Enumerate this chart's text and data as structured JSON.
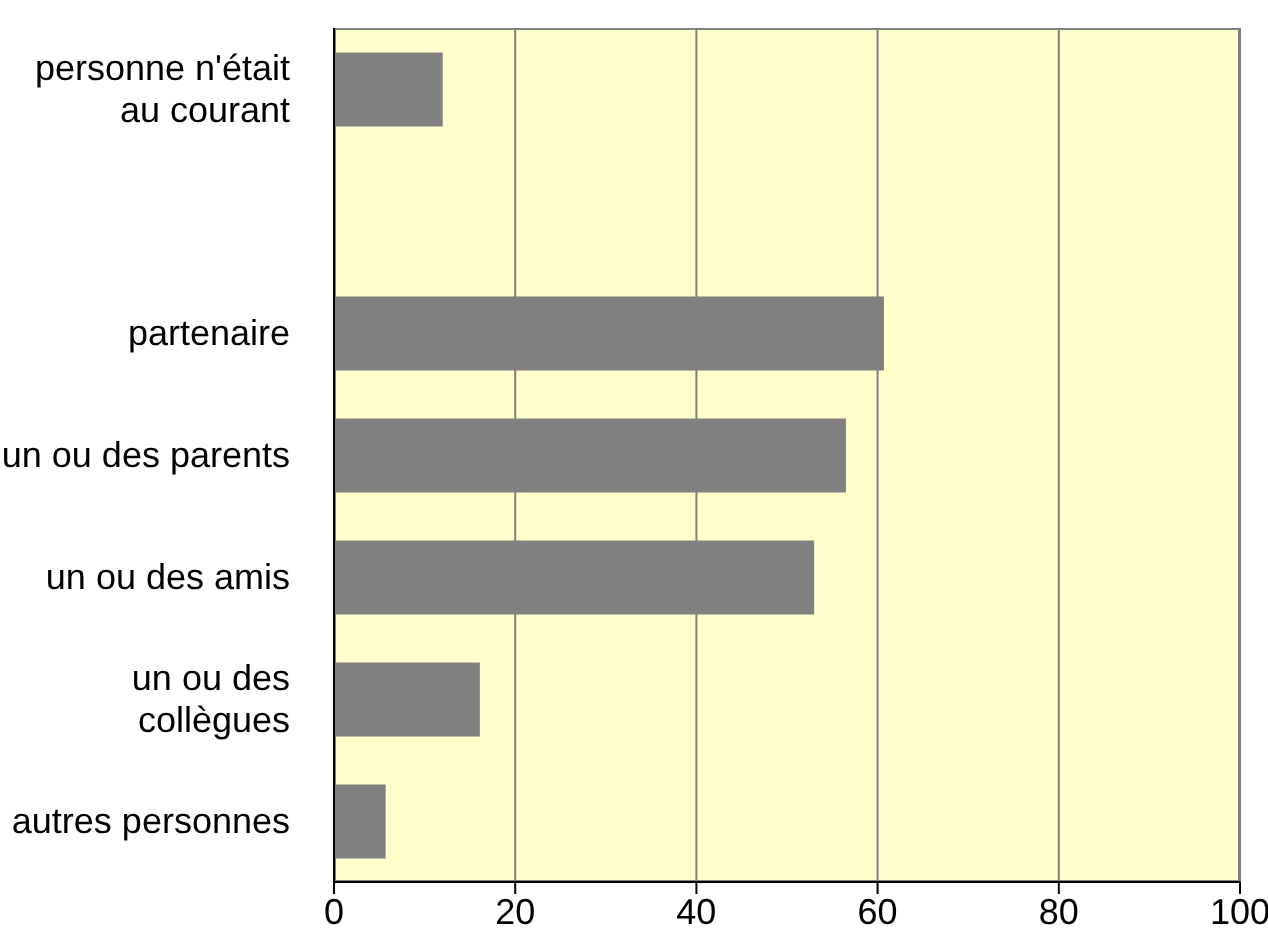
{
  "chart_data": {
    "type": "bar",
    "orientation": "horizontal",
    "categories": [
      "personne n'était au courant",
      null,
      "partenaire",
      "un ou des parents",
      "un ou des amis",
      "un ou des collègues",
      "autres personnes"
    ],
    "values": [
      12,
      null,
      60.7,
      56.5,
      53,
      16.1,
      5.7
    ],
    "color": "#808080",
    "xlim": [
      0,
      100
    ],
    "xticks": [
      0,
      20,
      40,
      60,
      80,
      100
    ],
    "grid": "x"
  }
}
